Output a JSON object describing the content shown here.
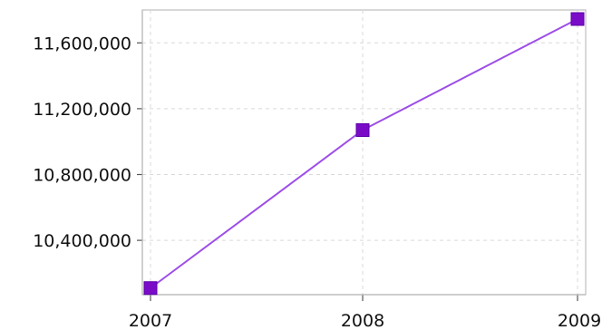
{
  "chart_data": {
    "type": "line",
    "categories": [
      "2007",
      "2008",
      "2009"
    ],
    "series": [
      {
        "values": [
          10110000,
          11070000,
          11745000
        ],
        "color": "#9d4ee8",
        "marker_color": "#7a0cc8",
        "marker": "square"
      }
    ],
    "y_ticks": [
      10400000,
      10800000,
      11200000,
      11600000
    ],
    "y_tick_labels": [
      "10,400,000",
      "10,800,000",
      "11,200,000",
      "11,600,000"
    ],
    "ylim": [
      10070000,
      11800000
    ],
    "title": "",
    "xlabel": "",
    "ylabel": "",
    "grid": true,
    "legend": "none"
  }
}
